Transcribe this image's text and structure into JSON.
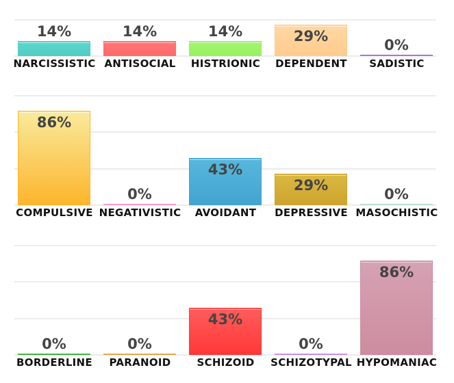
{
  "chart_data": {
    "type": "bar",
    "layout": "small-multiples, 3 rows of 5 bars",
    "ylim": [
      0,
      100
    ],
    "grid": true,
    "rows": [
      {
        "categories": [
          "NARCISSISTIC",
          "ANTISOCIAL",
          "HISTRIONIC",
          "DEPENDENT",
          "SADISTIC"
        ],
        "values": [
          14,
          14,
          14,
          29,
          0
        ],
        "labels": [
          "14%",
          "14%",
          "14%",
          "29%",
          "0%"
        ],
        "colors": [
          [
            "#5dd5cd",
            "#52cdc4"
          ],
          [
            "#ff7676",
            "#ff6a6a"
          ],
          [
            "#a3f56e",
            "#98f262"
          ],
          [
            "#ffd8a4",
            "#ffcb8e"
          ],
          [
            "#b58be8",
            "#a574e0"
          ]
        ]
      },
      {
        "categories": [
          "COMPULSIVE",
          "NEGATIVISTIC",
          "AVOIDANT",
          "DEPRESSIVE",
          "MASOCHISTIC"
        ],
        "values": [
          86,
          0,
          43,
          29,
          0
        ],
        "labels": [
          "86%",
          "0%",
          "43%",
          "29%",
          "0%"
        ],
        "colors": [
          [
            "#f9ea9c",
            "#fdb52c"
          ],
          [
            "#ffb0e0",
            "#ff9ad6"
          ],
          [
            "#57b7dc",
            "#43a4cf"
          ],
          [
            "#dab842",
            "#cea42e"
          ],
          [
            "#cfe7df",
            "#bfe0d6"
          ]
        ]
      },
      {
        "categories": [
          "BORDERLINE",
          "PARANOID",
          "SCHIZOID",
          "SCHIZOTYPAL",
          "HYPOMANIAC"
        ],
        "values": [
          0,
          0,
          43,
          0,
          86
        ],
        "labels": [
          "0%",
          "0%",
          "43%",
          "0%",
          "86%"
        ],
        "colors": [
          [
            "#5cc85c",
            "#3fb83f"
          ],
          [
            "#f3b96a",
            "#eaa54c"
          ],
          [
            "#ff5c5c",
            "#ff3838"
          ],
          [
            "#d7a6ee",
            "#c98fe8"
          ],
          [
            "#d6a2b3",
            "#cd8ca0"
          ]
        ]
      }
    ]
  }
}
